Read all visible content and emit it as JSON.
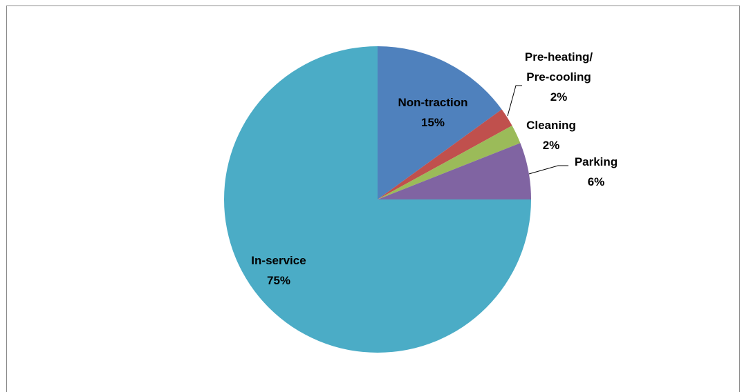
{
  "chart_data": {
    "type": "pie",
    "title": "",
    "start_angle_deg": 0,
    "direction": "clockwise",
    "slices": [
      {
        "name": "Non-traction",
        "value": 15,
        "label": "15%",
        "color": "#4F81BD"
      },
      {
        "name": "Pre-heating/ Pre-cooling",
        "value": 2,
        "label": "2%",
        "color": "#C0504D"
      },
      {
        "name": "Cleaning",
        "value": 2,
        "label": "2%",
        "color": "#9BBB59"
      },
      {
        "name": "Parking",
        "value": 6,
        "label": "6%",
        "color": "#8064A2"
      },
      {
        "name": "In-service",
        "value": 75,
        "label": "75%",
        "color": "#4BACC6"
      }
    ],
    "label_lines": [
      [
        "Non-traction",
        "15%"
      ],
      [
        "Pre-heating/",
        "Pre-cooling",
        "2%"
      ],
      [
        "Cleaning",
        "2%"
      ],
      [
        "Parking",
        "6%"
      ],
      [
        "In-service",
        "75%"
      ]
    ],
    "leader_lines": [
      false,
      true,
      false,
      true,
      false
    ]
  }
}
